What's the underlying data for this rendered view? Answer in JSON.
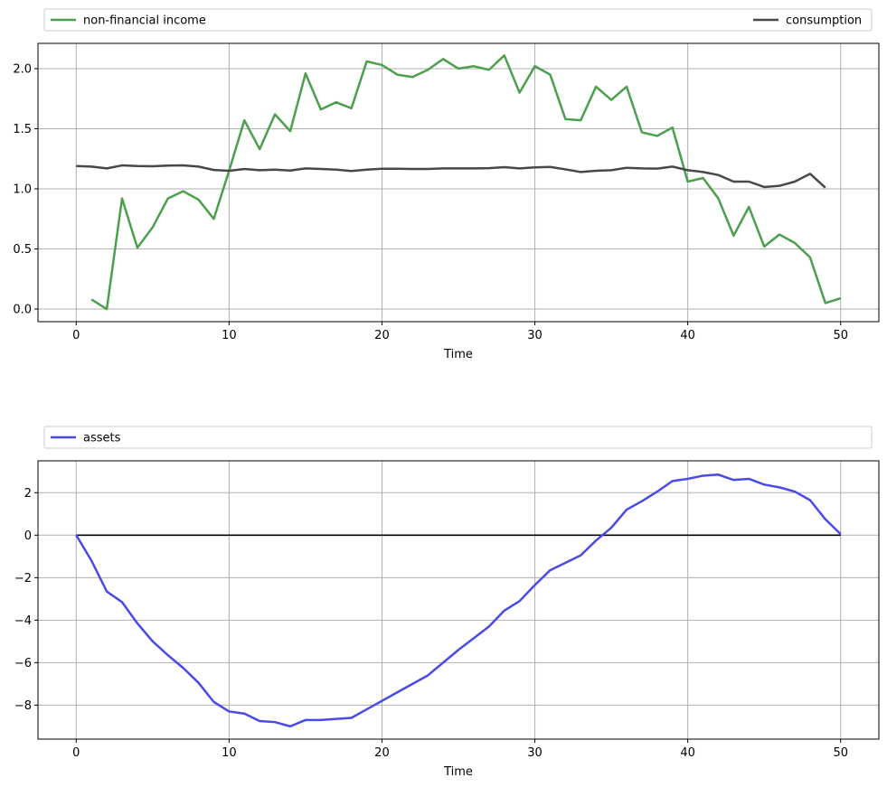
{
  "chart_data": [
    {
      "type": "line",
      "xlabel": "Time",
      "ylabel": "",
      "xlim": [
        -2.5,
        52.5
      ],
      "ylim": [
        -0.105,
        2.21
      ],
      "xticks": [
        "0",
        "10",
        "20",
        "30",
        "40",
        "50"
      ],
      "yticks": [
        "0.0",
        "0.5",
        "1.0",
        "1.5",
        "2.0"
      ],
      "grid": true,
      "legend": "top, spanning above plot",
      "series": [
        {
          "name": "non-financial income",
          "color": "#4c9f4c",
          "x": [
            1,
            2,
            3,
            4,
            5,
            6,
            7,
            8,
            9,
            10,
            11,
            12,
            13,
            14,
            15,
            16,
            17,
            18,
            19,
            20,
            21,
            22,
            23,
            24,
            25,
            26,
            27,
            28,
            29,
            30,
            31,
            32,
            33,
            34,
            35,
            36,
            37,
            38,
            39,
            40,
            41,
            42,
            43,
            44,
            45,
            46,
            47,
            48,
            49,
            50
          ],
          "values": [
            0.08,
            0.0,
            0.92,
            0.51,
            0.68,
            0.92,
            0.98,
            0.91,
            0.75,
            1.15,
            1.57,
            1.33,
            1.62,
            1.48,
            1.96,
            1.66,
            1.72,
            1.67,
            2.06,
            2.03,
            1.95,
            1.93,
            1.99,
            2.08,
            2.0,
            2.02,
            1.99,
            2.11,
            1.8,
            2.02,
            1.95,
            1.58,
            1.57,
            1.85,
            1.74,
            1.85,
            1.47,
            1.44,
            1.51,
            1.06,
            1.09,
            0.92,
            0.61,
            0.85,
            0.52,
            0.62,
            0.55,
            0.43,
            0.05,
            0.09
          ]
        },
        {
          "name": "consumption",
          "color": "#484848",
          "x": [
            0,
            1,
            2,
            3,
            4,
            5,
            6,
            7,
            8,
            9,
            10,
            11,
            12,
            13,
            14,
            15,
            16,
            17,
            18,
            19,
            20,
            21,
            22,
            23,
            24,
            25,
            26,
            27,
            28,
            29,
            30,
            31,
            32,
            33,
            34,
            35,
            36,
            37,
            38,
            39,
            40,
            41,
            42,
            43,
            44,
            45,
            46,
            47,
            48,
            49
          ],
          "values": [
            1.19,
            1.185,
            1.17,
            1.195,
            1.19,
            1.188,
            1.193,
            1.195,
            1.185,
            1.157,
            1.15,
            1.165,
            1.155,
            1.16,
            1.152,
            1.17,
            1.165,
            1.16,
            1.148,
            1.16,
            1.167,
            1.167,
            1.165,
            1.165,
            1.17,
            1.17,
            1.17,
            1.172,
            1.18,
            1.17,
            1.178,
            1.182,
            1.162,
            1.14,
            1.15,
            1.155,
            1.175,
            1.17,
            1.168,
            1.185,
            1.155,
            1.14,
            1.115,
            1.06,
            1.06,
            1.015,
            1.025,
            1.06,
            1.125,
            1.01
          ]
        }
      ]
    },
    {
      "type": "line",
      "xlabel": "Time",
      "ylabel": "",
      "xlim": [
        -2.5,
        52.5
      ],
      "ylim": [
        -9.6,
        3.5
      ],
      "xticks": [
        "0",
        "10",
        "20",
        "30",
        "40",
        "50"
      ],
      "yticks": [
        "−8",
        "−6",
        "−4",
        "−2",
        "0",
        "2"
      ],
      "grid": true,
      "zero_line": true,
      "legend": "top, spanning above plot",
      "series": [
        {
          "name": "assets",
          "color": "#4a4ae8",
          "x": [
            0,
            1,
            2,
            3,
            4,
            5,
            6,
            7,
            8,
            9,
            10,
            11,
            12,
            13,
            14,
            15,
            16,
            17,
            18,
            19,
            20,
            21,
            22,
            23,
            24,
            25,
            26,
            27,
            28,
            29,
            30,
            31,
            32,
            33,
            34,
            35,
            36,
            37,
            38,
            39,
            40,
            41,
            42,
            43,
            44,
            45,
            46,
            47,
            48,
            49,
            50
          ],
          "values": [
            0.0,
            -1.2,
            -2.65,
            -3.15,
            -4.15,
            -5.0,
            -5.65,
            -6.25,
            -6.95,
            -7.85,
            -8.3,
            -8.4,
            -8.75,
            -8.8,
            -9.0,
            -8.7,
            -8.7,
            -8.65,
            -8.6,
            -8.2,
            -7.8,
            -7.4,
            -7.0,
            -6.6,
            -6.0,
            -5.4,
            -4.85,
            -4.3,
            -3.55,
            -3.1,
            -2.35,
            -1.65,
            -1.3,
            -0.95,
            -0.25,
            0.35,
            1.2,
            1.6,
            2.05,
            2.55,
            2.65,
            2.8,
            2.85,
            2.6,
            2.65,
            2.38,
            2.25,
            2.05,
            1.65,
            0.75,
            0.05
          ]
        }
      ]
    }
  ]
}
